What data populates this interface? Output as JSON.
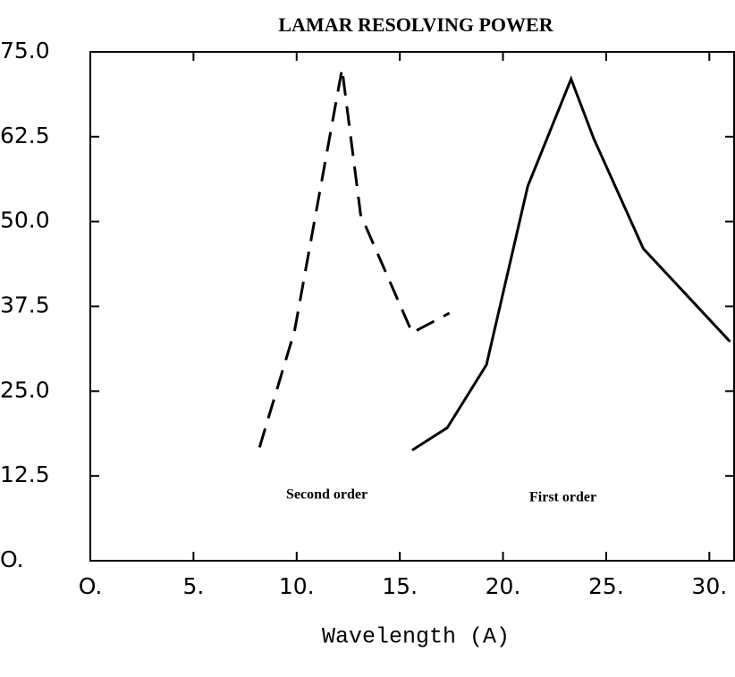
{
  "chart_data": {
    "type": "line",
    "title": "LAMAR RESOLVING POWER",
    "x_label": "Wavelength (A)",
    "annotations": [
      "Second order",
      "First order"
    ],
    "xlim": [
      0,
      31.2
    ],
    "ylim": [
      0,
      75
    ],
    "xticks": [
      {
        "value": 0,
        "label": "O."
      },
      {
        "value": 5,
        "label": "5."
      },
      {
        "value": 10,
        "label": "10."
      },
      {
        "value": 15,
        "label": "15."
      },
      {
        "value": 20,
        "label": "20."
      },
      {
        "value": 25,
        "label": "25."
      },
      {
        "value": 30,
        "label": "30."
      }
    ],
    "yticks": [
      {
        "value": 0,
        "label": "O."
      },
      12.5,
      {
        "value": 25,
        "label": "25.0"
      },
      37.5,
      {
        "value": 50,
        "label": "50.0"
      },
      62.5,
      {
        "value": 75,
        "label": "75.0"
      }
    ],
    "series": [
      {
        "name": "Second order",
        "color": "#000000",
        "style": "dashed",
        "x": [
          8.2,
          9.9,
          12.2,
          13.1,
          15.6,
          17.4
        ],
        "values": [
          16.7,
          33.9,
          72.5,
          51,
          33.6,
          36.5
        ]
      },
      {
        "name": "First order",
        "color": "#000000",
        "style": "solid",
        "x": [
          15.6,
          17.3,
          19.2,
          21.2,
          23.3,
          24.4,
          26.8,
          31
        ],
        "values": [
          16.3,
          19.6,
          28.9,
          55.2,
          71,
          62.2,
          46,
          32.3
        ]
      }
    ]
  }
}
